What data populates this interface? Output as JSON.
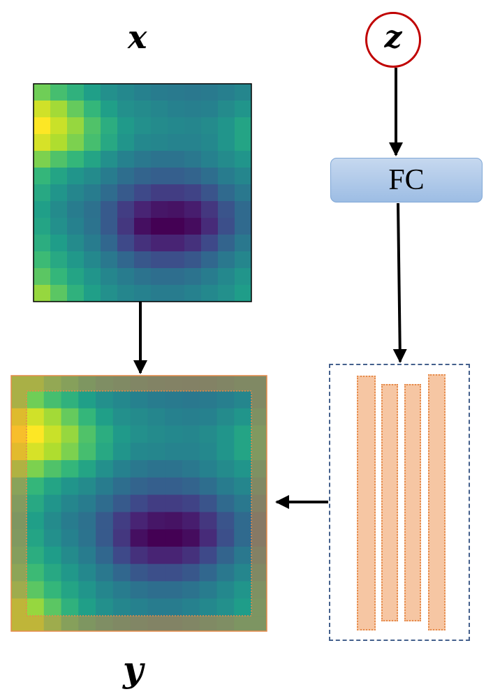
{
  "labels": {
    "x": "x",
    "y": "y",
    "z": "z",
    "fc": "FC"
  },
  "colors": {
    "z_circle": "#c00000",
    "fc_fill": "#a9c4e8",
    "filter_strip": "#f6c6a3",
    "filter_border": "#e58a4a",
    "panel_border": "#44608c",
    "arrow": "#000000"
  },
  "heatmap": {
    "colormap": "viridis",
    "rows": 13,
    "cols": 13,
    "values": [
      [
        0.78,
        0.7,
        0.64,
        0.56,
        0.5,
        0.47,
        0.44,
        0.42,
        0.41,
        0.4,
        0.41,
        0.43,
        0.46
      ],
      [
        0.93,
        0.86,
        0.76,
        0.66,
        0.56,
        0.5,
        0.48,
        0.46,
        0.44,
        0.43,
        0.44,
        0.48,
        0.52
      ],
      [
        1.0,
        0.92,
        0.84,
        0.72,
        0.62,
        0.54,
        0.5,
        0.48,
        0.47,
        0.46,
        0.48,
        0.52,
        0.58
      ],
      [
        0.94,
        0.88,
        0.8,
        0.7,
        0.6,
        0.52,
        0.47,
        0.46,
        0.45,
        0.45,
        0.47,
        0.52,
        0.58
      ],
      [
        0.8,
        0.72,
        0.66,
        0.58,
        0.5,
        0.44,
        0.4,
        0.38,
        0.38,
        0.4,
        0.44,
        0.48,
        0.52
      ],
      [
        0.66,
        0.58,
        0.52,
        0.48,
        0.42,
        0.36,
        0.32,
        0.3,
        0.3,
        0.32,
        0.36,
        0.42,
        0.46
      ],
      [
        0.6,
        0.52,
        0.46,
        0.42,
        0.35,
        0.28,
        0.22,
        0.18,
        0.18,
        0.2,
        0.26,
        0.34,
        0.4
      ],
      [
        0.56,
        0.48,
        0.42,
        0.37,
        0.28,
        0.18,
        0.1,
        0.06,
        0.05,
        0.08,
        0.16,
        0.26,
        0.34
      ],
      [
        0.58,
        0.5,
        0.44,
        0.38,
        0.28,
        0.16,
        0.04,
        0.0,
        0.0,
        0.03,
        0.12,
        0.24,
        0.34
      ],
      [
        0.62,
        0.55,
        0.48,
        0.42,
        0.33,
        0.22,
        0.14,
        0.1,
        0.1,
        0.14,
        0.22,
        0.32,
        0.4
      ],
      [
        0.68,
        0.6,
        0.53,
        0.47,
        0.4,
        0.33,
        0.27,
        0.24,
        0.24,
        0.27,
        0.33,
        0.4,
        0.46
      ],
      [
        0.74,
        0.66,
        0.58,
        0.52,
        0.46,
        0.42,
        0.38,
        0.36,
        0.36,
        0.38,
        0.42,
        0.47,
        0.52
      ],
      [
        0.84,
        0.74,
        0.64,
        0.56,
        0.5,
        0.46,
        0.44,
        0.42,
        0.42,
        0.44,
        0.47,
        0.5,
        0.55
      ]
    ]
  },
  "output_border_tint": "#f08c32"
}
